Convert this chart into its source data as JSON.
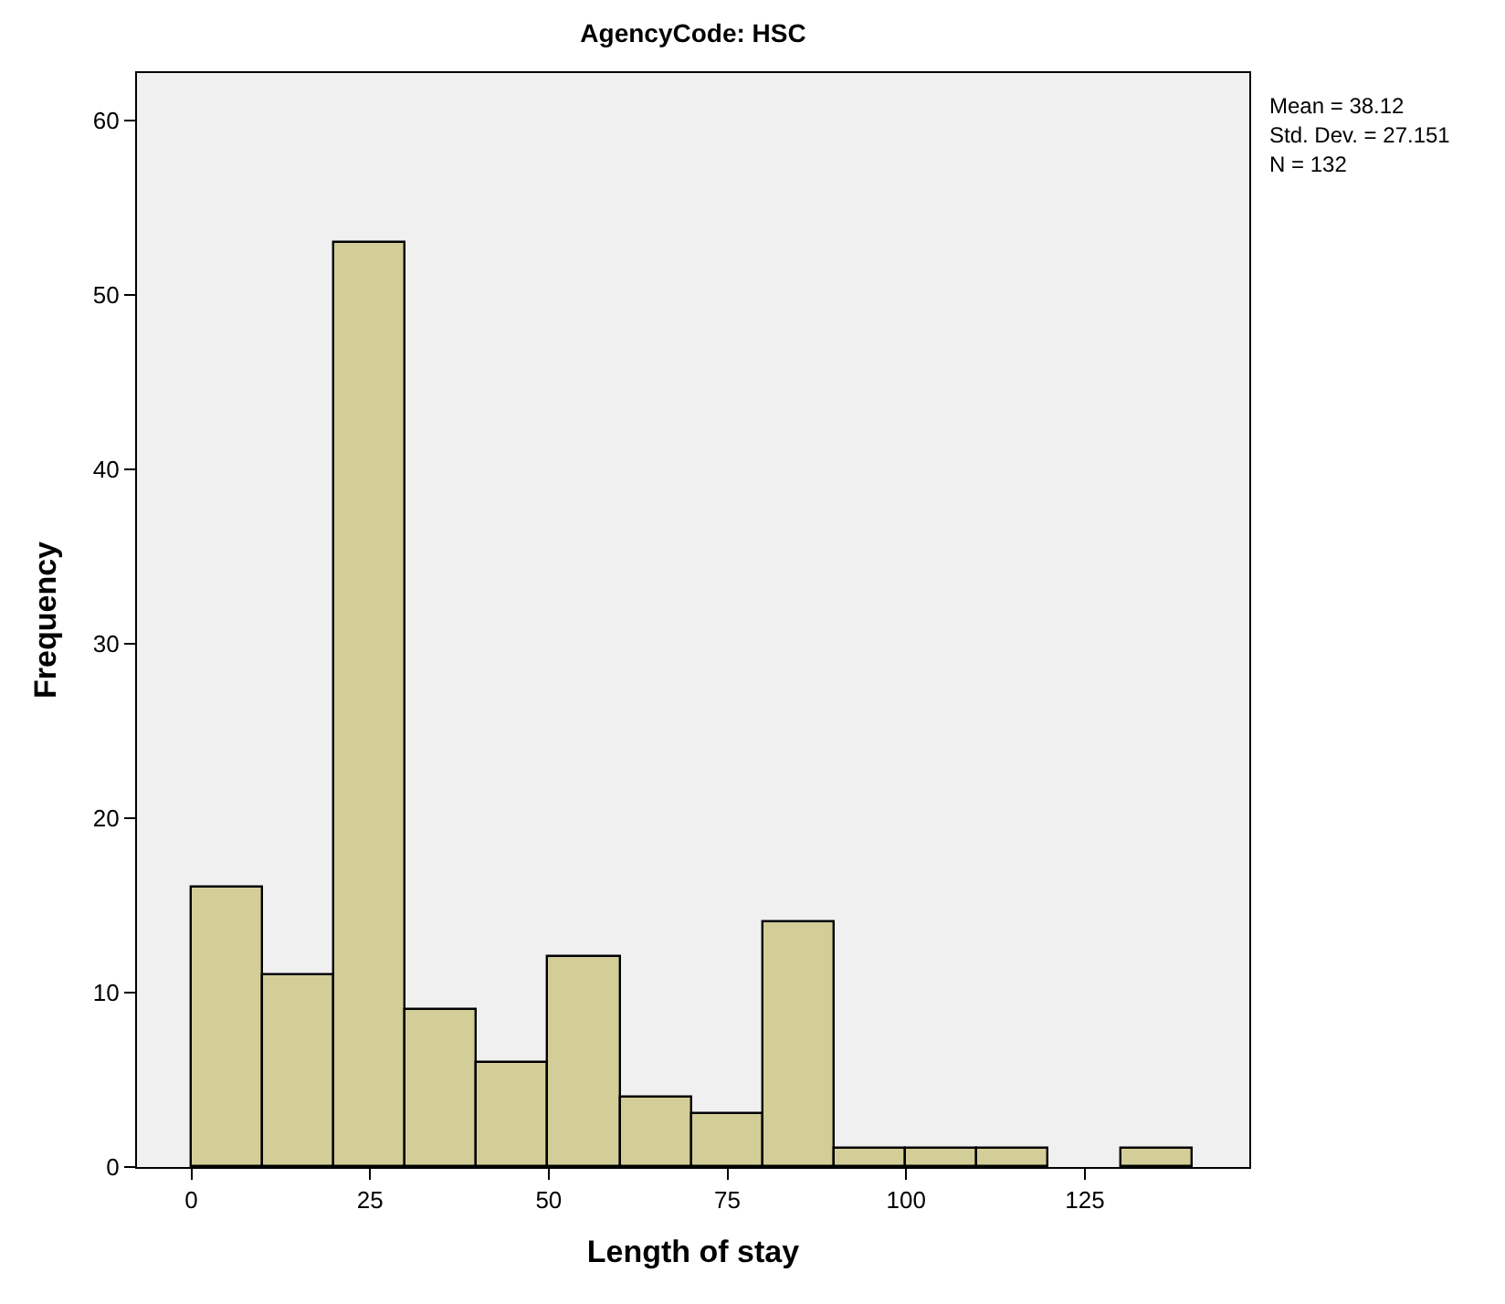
{
  "chart_data": {
    "type": "histogram",
    "title": "AgencyCode: HSC",
    "xlabel": "Length of stay",
    "ylabel": "Frequency",
    "bins": [
      0,
      10,
      20,
      30,
      40,
      50,
      60,
      70,
      80,
      90,
      100,
      110,
      120,
      130,
      140
    ],
    "values": [
      16,
      11,
      53,
      9,
      6,
      12,
      4,
      3,
      14,
      1,
      1,
      1,
      0,
      1
    ],
    "color": "#d3ce97",
    "xlim": [
      -7.6,
      148
    ],
    "xticks": [
      0,
      25,
      50,
      75,
      100,
      125
    ],
    "ylim": [
      0,
      62.7
    ],
    "yticks": [
      0,
      10,
      20,
      30,
      40,
      50,
      60
    ],
    "grid": false,
    "annotations": [
      "Mean = 38.12",
      "Std. Dev. = 27.151",
      "N = 132"
    ]
  }
}
